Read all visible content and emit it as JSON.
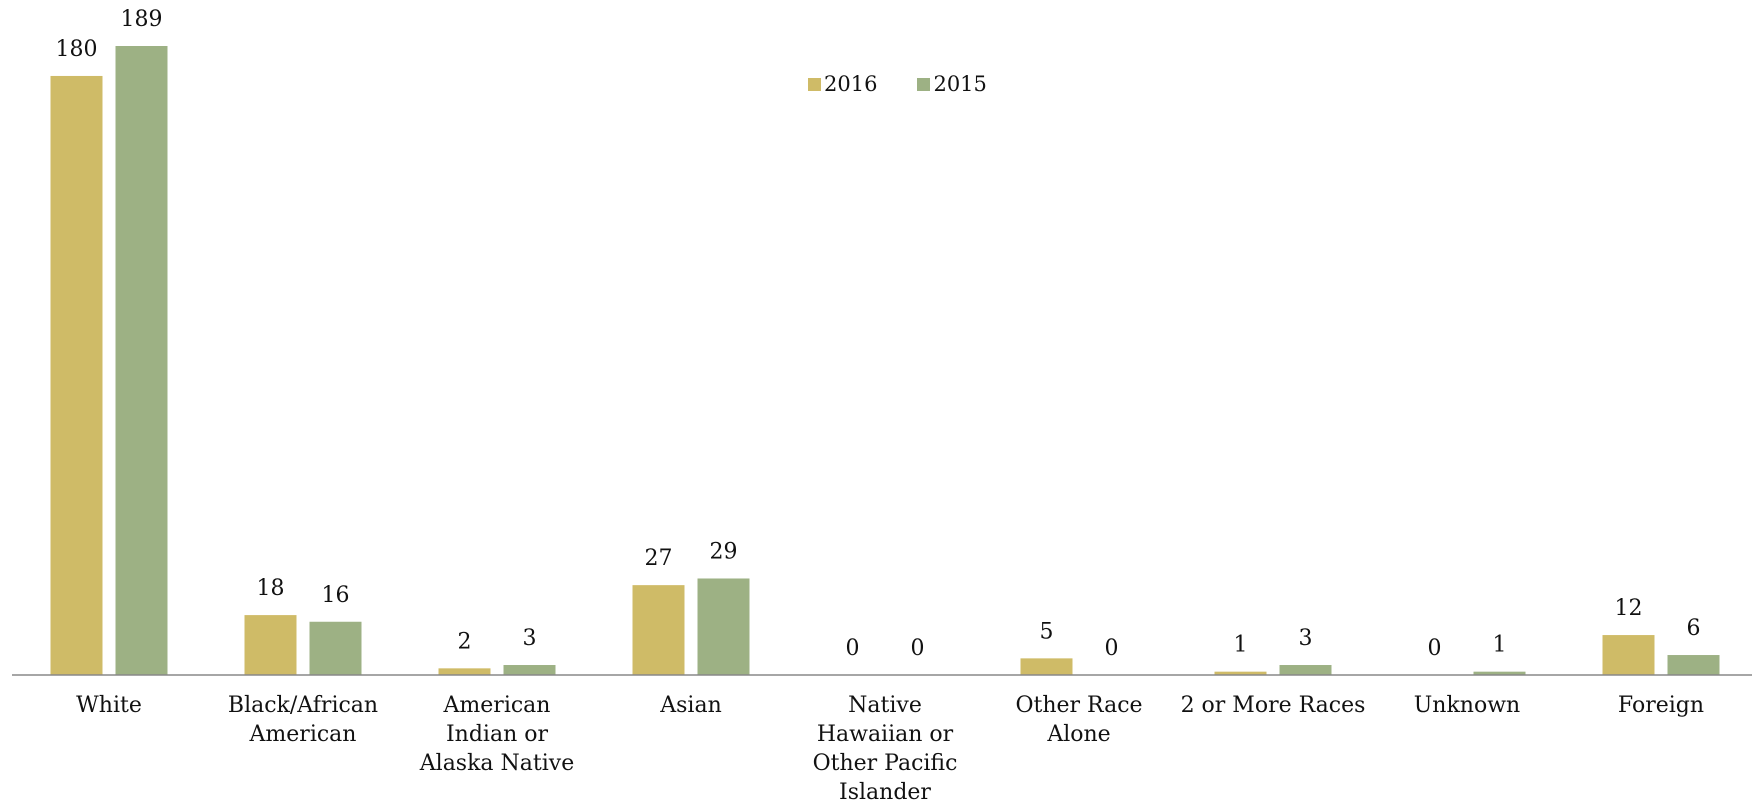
{
  "chart_data": {
    "type": "bar",
    "categories": [
      [
        "White"
      ],
      [
        "Black/African",
        "American"
      ],
      [
        "American",
        "Indian or",
        "Alaska Native"
      ],
      [
        "Asian"
      ],
      [
        "Native",
        "Hawaiian or",
        "Other Pacific",
        "Islander"
      ],
      [
        "Other Race",
        "Alone"
      ],
      [
        "2 or More Races"
      ],
      [
        "Unknown"
      ],
      [
        "Foreign"
      ]
    ],
    "series": [
      {
        "name": "2016",
        "color": "#cfbb67",
        "values": [
          180,
          18,
          2,
          27,
          0,
          5,
          1,
          0,
          12
        ]
      },
      {
        "name": "2015",
        "color": "#9db184",
        "values": [
          189,
          16,
          3,
          29,
          0,
          0,
          3,
          1,
          6
        ]
      }
    ],
    "ylim": [
      0,
      200
    ],
    "axis_color": "#888888",
    "legend_position": "top-center",
    "grid": false
  }
}
